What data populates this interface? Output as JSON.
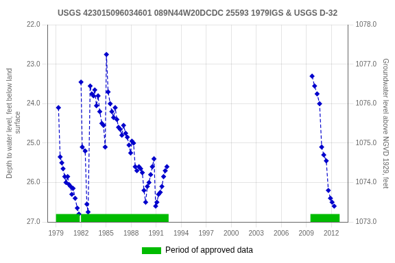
{
  "chart_data": {
    "type": "line",
    "title": "USGS 423015096034601 089N44W20DCDC 25593 1979IGS & USGS D-32",
    "ylabel": "Depth to water level, feet below land\n surface",
    "y2label": "Groundwater level above NGVD 1929, feet",
    "xlim": [
      1978.0,
      2014.0
    ],
    "xticks": [
      1979,
      1982,
      1985,
      1988,
      1991,
      1994,
      1997,
      2000,
      2003,
      2006,
      2009,
      2012
    ],
    "ylim": [
      27.0,
      22.0
    ],
    "yticks": [
      {
        "value": 22.0,
        "label": "22.0"
      },
      {
        "value": 23.0,
        "label": "23.0"
      },
      {
        "value": 24.0,
        "label": "24.0"
      },
      {
        "value": 25.0,
        "label": "25.0"
      },
      {
        "value": 26.0,
        "label": "26.0"
      },
      {
        "value": 27.0,
        "label": "27.0"
      }
    ],
    "y2lim": [
      1073.0,
      1078.0
    ],
    "y2ticks": [
      {
        "value": 1073.0,
        "label": "1073.0"
      },
      {
        "value": 1074.0,
        "label": "1074.0"
      },
      {
        "value": 1075.0,
        "label": "1075.0"
      },
      {
        "value": 1076.0,
        "label": "1076.0"
      },
      {
        "value": 1077.0,
        "label": "1077.0"
      },
      {
        "value": 1078.0,
        "label": "1078.0"
      }
    ],
    "grid": true,
    "legend": "bottom",
    "series": [
      {
        "x": [
          1979.3,
          1979.5,
          1979.7,
          1979.85,
          1980.05,
          1980.2,
          1980.4,
          1980.55,
          1980.75,
          1980.9,
          1981.05,
          1981.3,
          1981.55,
          1981.75
        ],
        "values": [
          24.1,
          25.35,
          25.5,
          25.65,
          25.85,
          26.0,
          25.85,
          26.05,
          26.1,
          26.3,
          26.15,
          26.4,
          26.65,
          26.8
        ],
        "color": "#0000cc",
        "marker": "diamond",
        "line_style": "dashed"
      },
      {
        "x": [
          1982.0,
          1982.15,
          1982.5,
          1982.7,
          1982.85,
          1983.1,
          1983.3,
          1983.5,
          1983.65,
          1983.85,
          1984.05,
          1984.25,
          1984.5,
          1984.7,
          1984.9,
          1985.05,
          1985.25,
          1985.5,
          1985.7,
          1985.9,
          1986.1,
          1986.3,
          1986.5,
          1986.7,
          1986.9,
          1987.1,
          1987.35,
          1987.55,
          1987.75,
          1987.95,
          1988.1,
          1988.3,
          1988.5,
          1988.7,
          1988.95,
          1989.15,
          1989.35,
          1989.55,
          1989.75,
          1989.95,
          1990.15,
          1990.35,
          1990.55,
          1990.75,
          1990.95,
          1991.1,
          1991.3,
          1991.5,
          1991.7,
          1991.9,
          1992.1,
          1992.3
        ],
        "values": [
          23.45,
          25.1,
          25.2,
          26.55,
          26.75,
          23.55,
          23.75,
          23.8,
          23.65,
          24.05,
          23.8,
          24.2,
          24.5,
          24.55,
          25.1,
          22.75,
          23.7,
          24.0,
          24.2,
          24.35,
          24.1,
          24.4,
          24.6,
          24.65,
          24.8,
          24.55,
          24.75,
          24.85,
          25.05,
          25.25,
          24.95,
          25.0,
          25.6,
          25.7,
          25.6,
          25.65,
          25.75,
          26.2,
          26.5,
          26.1,
          26.0,
          25.8,
          25.6,
          25.4,
          26.6,
          26.5,
          26.3,
          26.25,
          26.1,
          25.85,
          25.7,
          25.6
        ],
        "color": "#0000cc",
        "marker": "diamond",
        "line_style": "dashed"
      },
      {
        "x": [
          2009.7,
          2010.0,
          2010.3,
          2010.6,
          2010.85,
          2011.1,
          2011.4,
          2011.65,
          2011.9,
          2012.1,
          2012.35
        ],
        "values": [
          23.3,
          23.55,
          23.75,
          24.0,
          25.1,
          25.3,
          25.45,
          26.2,
          26.4,
          26.5,
          26.6
        ],
        "color": "#0000cc",
        "marker": "diamond",
        "line_style": "dashed"
      }
    ],
    "approved_periods": {
      "name": "Period of approved data",
      "color": "#00bb00",
      "ranges": [
        [
          1979.0,
          1981.85
        ],
        [
          1982.0,
          1992.5
        ],
        [
          2009.5,
          2013.0
        ]
      ]
    }
  }
}
